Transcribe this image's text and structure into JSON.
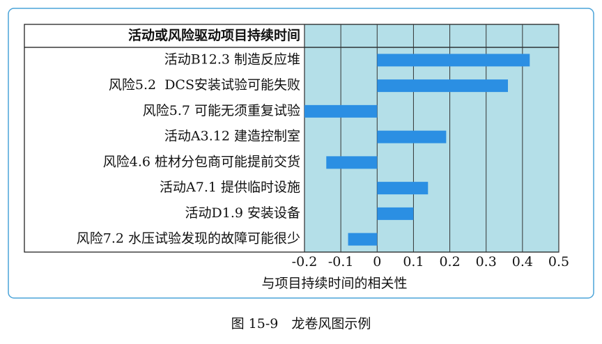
{
  "chart_data": {
    "type": "bar",
    "orientation": "horizontal",
    "title": "活动或风险驱动项目持续时间",
    "xlabel": "与项目持续时间的相关性",
    "caption": "图 15-9　龙卷风图示例",
    "categories": [
      "活动B12.3 制造反应堆",
      "风险5.2  DCS安装试验可能失败",
      "风险5.7 可能无须重复试验",
      "活动A3.12 建造控制室",
      "风险4.6 桩材分包商可能提前交货",
      "活动A7.1 提供临时设施",
      "活动D1.9 安装设备",
      "风险7.2 水压试验发现的故障可能很少"
    ],
    "values": [
      0.42,
      0.36,
      -0.2,
      0.19,
      -0.14,
      0.14,
      0.1,
      -0.08
    ],
    "color": "#2b8fe3",
    "xlim": [
      -0.2,
      0.5
    ],
    "xticks": [
      -0.2,
      -0.1,
      0,
      0.1,
      0.2,
      0.3,
      0.4,
      0.5
    ],
    "grid": true
  }
}
